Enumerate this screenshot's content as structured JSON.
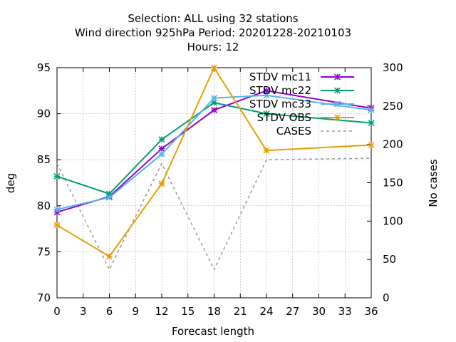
{
  "chart_data": {
    "type": "line",
    "title_lines": [
      "Selection: ALL using    32 stations",
      "Wind direction 925hPa   Period: 20201228-20210103",
      "Hours:  12"
    ],
    "xlabel": "Forecast length",
    "ylabel": "deg",
    "y2label": "No cases",
    "x": [
      0,
      6,
      12,
      18,
      24,
      36
    ],
    "xlim": [
      0,
      36
    ],
    "xticks": [
      0,
      3,
      6,
      9,
      12,
      15,
      18,
      21,
      24,
      27,
      30,
      33,
      36
    ],
    "ylim": [
      70,
      95
    ],
    "yticks": [
      70,
      75,
      80,
      85,
      90,
      95
    ],
    "y2lim": [
      0,
      300
    ],
    "y2ticks": [
      0,
      50,
      100,
      150,
      200,
      250,
      300
    ],
    "grid": true,
    "legend_position": "top-right",
    "series": [
      {
        "name": "STDV mc11",
        "axis": "y",
        "color": "#9400d3",
        "dash": "",
        "marker": "x",
        "values": [
          79.3,
          81.0,
          86.2,
          90.4,
          92.5,
          90.6
        ]
      },
      {
        "name": "STDV mc22",
        "axis": "y",
        "color": "#009e73",
        "dash": "",
        "marker": "x",
        "values": [
          83.2,
          81.3,
          87.2,
          91.2,
          90.0,
          89.0
        ]
      },
      {
        "name": "STDV mc33",
        "axis": "y",
        "color": "#56b4e9",
        "dash": "",
        "marker": "x",
        "values": [
          79.6,
          80.9,
          85.6,
          91.7,
          92.0,
          90.4
        ]
      },
      {
        "name": "STDV OBS",
        "axis": "y",
        "color": "#e69f00",
        "dash": "",
        "marker": "x",
        "values": [
          77.9,
          74.5,
          82.4,
          95.0,
          86.0,
          86.6
        ]
      },
      {
        "name": "CASES",
        "axis": "y2",
        "color": "#999999",
        "dash": "4,4",
        "marker": "",
        "values": [
          175,
          37,
          175,
          37,
          180,
          182
        ]
      }
    ]
  }
}
